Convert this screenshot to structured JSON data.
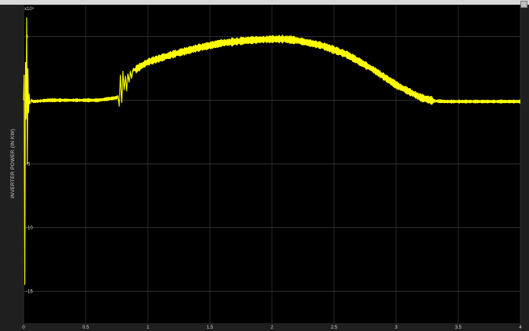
{
  "window": {
    "background": "#1f1f1f",
    "plot_background": "#000000",
    "trace_color": "#ffff00",
    "grid_color": "#3b3b3b",
    "text_color": "#d7d7d7"
  },
  "chart_data": {
    "type": "line",
    "title": "",
    "xlabel": "",
    "ylabel": "INVERTER POWER (IN KW)",
    "exponent_label": "x10⁴",
    "xlim": [
      0,
      4
    ],
    "ylim": [
      -17.5,
      7.5
    ],
    "grid": true,
    "x_ticks": [
      0,
      0.5,
      1,
      1.5,
      2,
      2.5,
      3,
      3.5,
      4
    ],
    "x_tick_labels": [
      "0",
      "0.5",
      "1",
      "1.5",
      "2",
      "2.5",
      "3",
      "3.5",
      "4"
    ],
    "y_ticks": [
      5,
      0,
      -5,
      -10,
      -15
    ],
    "y_tick_labels": [
      "5",
      "0",
      "-5",
      "-10",
      "-15"
    ],
    "series": [
      {
        "color": "#ffff00",
        "noise_band": 0.35,
        "x": [
          0,
          0.005,
          0.01,
          0.015,
          0.02,
          0.025,
          0.03,
          0.035,
          0.04,
          0.045,
          0.05,
          0.06,
          0.08,
          0.2,
          0.4,
          0.6,
          0.75,
          0.76,
          0.77,
          0.78,
          0.79,
          0.8,
          0.81,
          0.82,
          0.83,
          0.84,
          0.85,
          0.86,
          0.87,
          0.88,
          0.9,
          0.95,
          1.0,
          1.2,
          1.4,
          1.6,
          1.8,
          2.0,
          2.1,
          2.2,
          2.4,
          2.6,
          2.8,
          3.0,
          3.2,
          3.3,
          3.4,
          3.5,
          3.6,
          3.8,
          4.0
        ],
        "y": [
          0,
          2.0,
          -14.5,
          3.0,
          -1.5,
          6.5,
          -5.0,
          2.5,
          -1.0,
          0.5,
          -0.3,
          0.0,
          -0.1,
          0.0,
          0.0,
          0.0,
          0.2,
          0.3,
          -0.5,
          2.0,
          -0.2,
          2.3,
          0.8,
          1.9,
          0.7,
          2.1,
          1.4,
          2.3,
          1.7,
          2.4,
          2.4,
          2.7,
          3.0,
          3.6,
          4.1,
          4.5,
          4.7,
          4.8,
          4.8,
          4.7,
          4.3,
          3.6,
          2.5,
          1.2,
          0.2,
          -0.05,
          -0.1,
          -0.1,
          -0.1,
          -0.1,
          -0.1
        ]
      }
    ]
  }
}
